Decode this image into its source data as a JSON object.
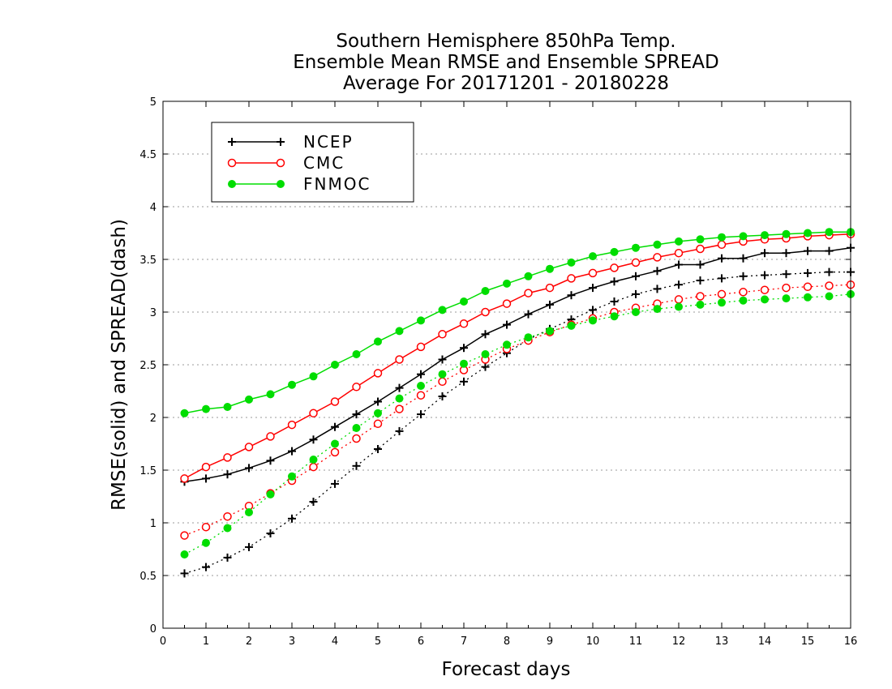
{
  "chart_data": {
    "type": "line",
    "title": [
      "Southern Hemisphere 850hPa Temp.",
      "Ensemble Mean RMSE and Ensemble SPREAD",
      "Average For 20171201 - 20180228"
    ],
    "xlabel": "Forecast days",
    "ylabel": "RMSE(solid) and SPREAD(dash)",
    "xlim": [
      0,
      16
    ],
    "ylim": [
      0,
      5
    ],
    "xticks": [
      "0",
      "1",
      "2",
      "3",
      "4",
      "5",
      "6",
      "7",
      "8",
      "9",
      "10",
      "11",
      "12",
      "13",
      "14",
      "15",
      "16"
    ],
    "yticks": [
      "0",
      "0.5",
      "1",
      "1.5",
      "2",
      "2.5",
      "3",
      "3.5",
      "4",
      "4.5",
      "5"
    ],
    "grid": "horizontal-dotted",
    "legend_position": "top-left",
    "x": [
      0.5,
      1,
      1.5,
      2,
      2.5,
      3,
      3.5,
      4,
      4.5,
      5,
      5.5,
      6,
      6.5,
      7,
      7.5,
      8,
      8.5,
      9,
      9.5,
      10,
      10.5,
      11,
      11.5,
      12,
      12.5,
      13,
      13.5,
      14,
      14.5,
      15,
      15.5,
      16
    ],
    "series": [
      {
        "name": "NCEP",
        "color": "#000000",
        "marker": "plus",
        "rmse": [
          1.39,
          1.42,
          1.46,
          1.52,
          1.59,
          1.68,
          1.79,
          1.91,
          2.03,
          2.15,
          2.28,
          2.41,
          2.55,
          2.66,
          2.79,
          2.88,
          2.98,
          3.07,
          3.16,
          3.23,
          3.29,
          3.34,
          3.39,
          3.45,
          3.45,
          3.51,
          3.51,
          3.56,
          3.56,
          3.58,
          3.58,
          3.61
        ],
        "spread": [
          0.52,
          0.58,
          0.67,
          0.77,
          0.9,
          1.04,
          1.2,
          1.37,
          1.54,
          1.7,
          1.87,
          2.03,
          2.2,
          2.34,
          2.48,
          2.61,
          2.74,
          2.84,
          2.93,
          3.02,
          3.1,
          3.17,
          3.22,
          3.26,
          3.3,
          3.32,
          3.34,
          3.35,
          3.36,
          3.37,
          3.38,
          3.38
        ]
      },
      {
        "name": "CMC",
        "color": "#ff0000",
        "marker": "open-circle",
        "rmse": [
          1.42,
          1.53,
          1.62,
          1.72,
          1.82,
          1.93,
          2.04,
          2.15,
          2.29,
          2.42,
          2.55,
          2.67,
          2.79,
          2.89,
          3.0,
          3.08,
          3.18,
          3.23,
          3.32,
          3.37,
          3.42,
          3.47,
          3.52,
          3.56,
          3.6,
          3.64,
          3.67,
          3.69,
          3.7,
          3.72,
          3.73,
          3.74
        ],
        "spread": [
          0.88,
          0.96,
          1.06,
          1.16,
          1.28,
          1.4,
          1.53,
          1.67,
          1.8,
          1.94,
          2.08,
          2.21,
          2.34,
          2.45,
          2.55,
          2.65,
          2.73,
          2.81,
          2.88,
          2.94,
          3.0,
          3.04,
          3.08,
          3.12,
          3.15,
          3.17,
          3.19,
          3.21,
          3.23,
          3.24,
          3.25,
          3.26
        ]
      },
      {
        "name": "FNMOC",
        "color": "#00dd00",
        "marker": "filled-circle",
        "rmse": [
          2.04,
          2.08,
          2.1,
          2.17,
          2.22,
          2.31,
          2.39,
          2.5,
          2.6,
          2.72,
          2.82,
          2.92,
          3.02,
          3.1,
          3.2,
          3.27,
          3.34,
          3.41,
          3.47,
          3.53,
          3.57,
          3.61,
          3.64,
          3.67,
          3.69,
          3.71,
          3.72,
          3.73,
          3.74,
          3.75,
          3.76,
          3.76
        ],
        "spread": [
          0.7,
          0.81,
          0.95,
          1.1,
          1.27,
          1.44,
          1.6,
          1.75,
          1.9,
          2.04,
          2.18,
          2.3,
          2.41,
          2.51,
          2.6,
          2.69,
          2.76,
          2.82,
          2.87,
          2.92,
          2.96,
          3.0,
          3.03,
          3.05,
          3.07,
          3.09,
          3.11,
          3.12,
          3.13,
          3.14,
          3.15,
          3.17
        ]
      }
    ]
  }
}
